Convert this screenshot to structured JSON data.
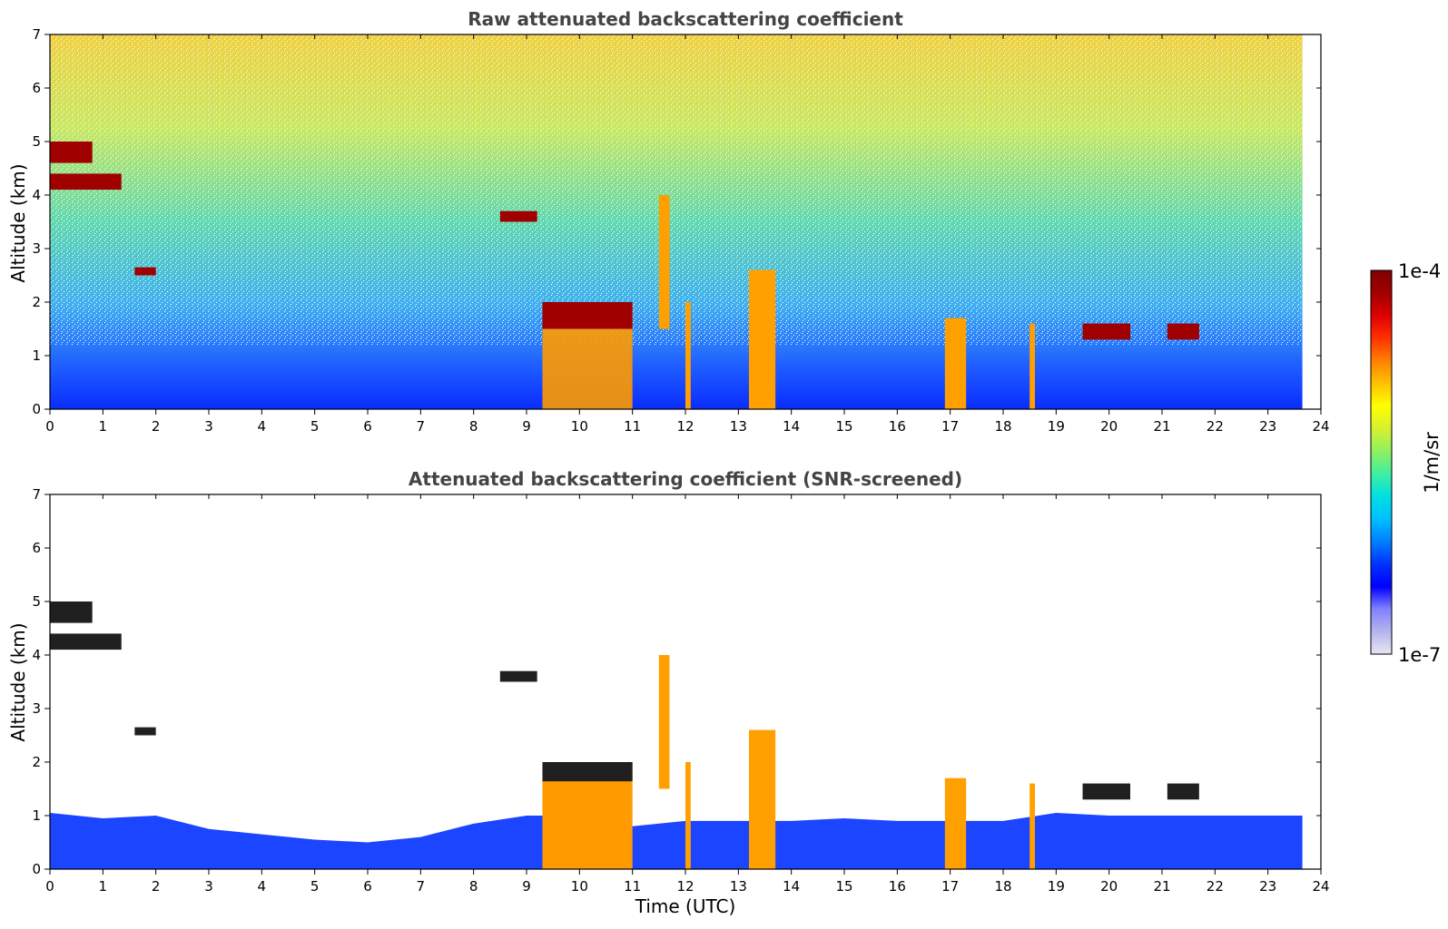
{
  "chart_data": [
    {
      "type": "heatmap",
      "title": "Raw attenuated backscattering coefficient",
      "ylabel": "Altitude (km)",
      "xlabel": "",
      "xlim": [
        0,
        24
      ],
      "ylim": [
        0,
        7
      ],
      "xticks": [
        "0",
        "1",
        "2",
        "3",
        "4",
        "5",
        "6",
        "7",
        "8",
        "9",
        "10",
        "11",
        "12",
        "13",
        "14",
        "15",
        "16",
        "17",
        "18",
        "19",
        "20",
        "21",
        "22",
        "23",
        "24"
      ],
      "yticks": [
        "0",
        "1",
        "2",
        "3",
        "4",
        "5",
        "6",
        "7"
      ],
      "data_end_time": 23.65,
      "features": [
        {
          "kind": "layer",
          "x": [
            0.0,
            1.35
          ],
          "y": [
            4.1,
            4.4
          ]
        },
        {
          "kind": "layer",
          "x": [
            0.0,
            0.8
          ],
          "y": [
            4.6,
            5.0
          ]
        },
        {
          "kind": "layer",
          "x": [
            1.6,
            2.0
          ],
          "y": [
            2.5,
            2.65
          ]
        },
        {
          "kind": "layer",
          "x": [
            8.5,
            9.2
          ],
          "y": [
            3.5,
            3.7
          ]
        },
        {
          "kind": "cloud",
          "x": [
            9.3,
            11.0
          ],
          "y": [
            0.0,
            2.0
          ]
        },
        {
          "kind": "column",
          "x": [
            11.5,
            11.7
          ],
          "y": [
            1.5,
            4.0
          ]
        },
        {
          "kind": "column",
          "x": [
            12.0,
            12.1
          ],
          "y": [
            0.0,
            2.0
          ]
        },
        {
          "kind": "column",
          "x": [
            13.2,
            13.7
          ],
          "y": [
            0.0,
            2.6
          ]
        },
        {
          "kind": "column",
          "x": [
            16.9,
            17.3
          ],
          "y": [
            0.0,
            1.7
          ]
        },
        {
          "kind": "column",
          "x": [
            18.5,
            18.6
          ],
          "y": [
            0.0,
            1.6
          ]
        },
        {
          "kind": "layer",
          "x": [
            19.5,
            20.4
          ],
          "y": [
            1.3,
            1.6
          ]
        },
        {
          "kind": "layer",
          "x": [
            21.1,
            21.7
          ],
          "y": [
            1.3,
            1.6
          ]
        }
      ]
    },
    {
      "type": "heatmap",
      "title": "Attenuated backscattering coefficient (SNR-screened)",
      "ylabel": "Altitude (km)",
      "xlabel": "Time (UTC)",
      "xlim": [
        0,
        24
      ],
      "ylim": [
        0,
        7
      ],
      "xticks": [
        "0",
        "1",
        "2",
        "3",
        "4",
        "5",
        "6",
        "7",
        "8",
        "9",
        "10",
        "11",
        "12",
        "13",
        "14",
        "15",
        "16",
        "17",
        "18",
        "19",
        "20",
        "21",
        "22",
        "23",
        "24"
      ],
      "yticks": [
        "0",
        "1",
        "2",
        "3",
        "4",
        "5",
        "6",
        "7"
      ],
      "data_end_time": 23.65,
      "boundary_layer_top_km": [
        [
          0,
          1.05
        ],
        [
          1,
          0.95
        ],
        [
          2,
          1.0
        ],
        [
          3,
          0.75
        ],
        [
          4,
          0.65
        ],
        [
          5,
          0.55
        ],
        [
          6,
          0.5
        ],
        [
          7,
          0.6
        ],
        [
          8,
          0.85
        ],
        [
          9,
          1.0
        ],
        [
          10,
          1.0
        ],
        [
          11,
          0.8
        ],
        [
          12,
          0.9
        ],
        [
          13,
          0.9
        ],
        [
          14,
          0.9
        ],
        [
          15,
          0.95
        ],
        [
          16,
          0.9
        ],
        [
          17,
          0.9
        ],
        [
          18,
          0.9
        ],
        [
          19,
          1.05
        ],
        [
          20,
          1.0
        ],
        [
          21,
          1.0
        ],
        [
          22,
          1.0
        ],
        [
          23,
          1.0
        ],
        [
          23.65,
          1.0
        ]
      ]
    }
  ],
  "colorbar": {
    "label": "1/m/sr",
    "max_label": "1e-4",
    "min_label": "1e-7",
    "colors": [
      "#e6e6f5",
      "#b4b4ec",
      "#8080ff",
      "#0000ff",
      "#0033ff",
      "#0080ff",
      "#00c0ff",
      "#00e0e0",
      "#40f0a0",
      "#90f060",
      "#d8f030",
      "#ffff00",
      "#ffc000",
      "#ff8000",
      "#ff3000",
      "#e00000",
      "#a00000",
      "#800000"
    ]
  }
}
